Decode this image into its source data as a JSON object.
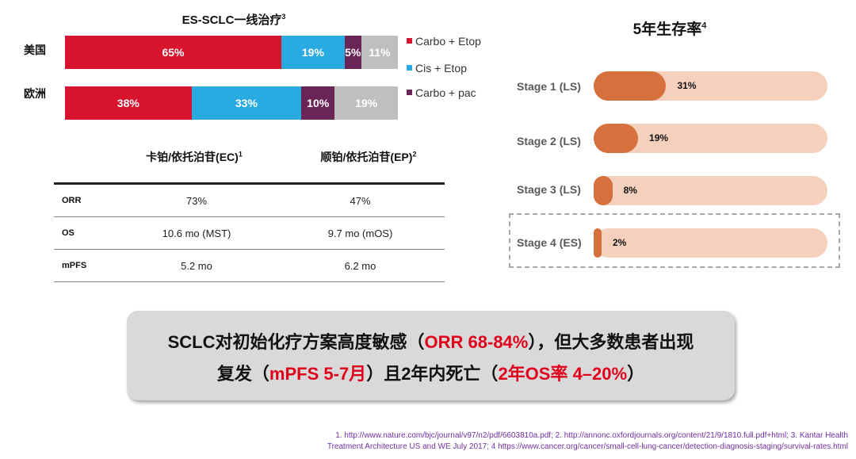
{
  "stacked_chart": {
    "title": "ES-SCLC一线治疗",
    "title_sup": "3",
    "rows": [
      {
        "label": "美国",
        "segments": [
          {
            "value": 65,
            "text": "65%",
            "color": "#d7132e"
          },
          {
            "value": 19,
            "text": "19%",
            "color": "#29abe2"
          },
          {
            "value": 5,
            "text": "5%",
            "color": "#6b2456"
          },
          {
            "value": 11,
            "text": "11%",
            "color": "#bfbfbf"
          }
        ]
      },
      {
        "label": "欧洲",
        "segments": [
          {
            "value": 38,
            "text": "38%",
            "color": "#d7132e"
          },
          {
            "value": 33,
            "text": "33%",
            "color": "#29abe2"
          },
          {
            "value": 10,
            "text": "10%",
            "color": "#6b2456"
          },
          {
            "value": 19,
            "text": "19%",
            "color": "#bfbfbf"
          }
        ]
      }
    ],
    "legend": [
      {
        "label": "Carbo + Etop",
        "color": "#d7132e"
      },
      {
        "label": "Cis + Etop",
        "color": "#29abe2"
      },
      {
        "label": "Carbo + pac",
        "color": "#6b2456"
      }
    ]
  },
  "table": {
    "col1_header": "卡铂/依托泊苷(EC)",
    "col1_sup": "1",
    "col2_header": "顺铂/依托泊苷(EP)",
    "col2_sup": "2",
    "rows": [
      {
        "label": "ORR",
        "ec": "73%",
        "ep": "47%"
      },
      {
        "label": "OS",
        "ec": "10.6 mo (MST)",
        "ep": "9.7 mo (mOS)"
      },
      {
        "label": "mPFS",
        "ec": "5.2 mo",
        "ep": "6.2 mo"
      }
    ]
  },
  "survival_chart": {
    "title": "5年生存率",
    "title_sup": "4",
    "stages": [
      {
        "label": "Stage 1 (LS)",
        "value": 31,
        "text": "31%"
      },
      {
        "label": "Stage 2 (LS)",
        "value": 19,
        "text": "19%"
      },
      {
        "label": "Stage 3 (LS)",
        "value": 8,
        "text": "8%"
      },
      {
        "label": "Stage 4 (ES)",
        "value": 2,
        "text": "2%"
      }
    ],
    "fill_color": "#d6703d",
    "track_color": "#f5d0bc"
  },
  "summary": {
    "line1_a": "SCLC对初始化疗方案高度敏感（",
    "line1_red": "ORR 68-84%",
    "line1_b": "），但大多数患者出现",
    "line2_a": "复发（",
    "line2_red1": "mPFS 5-7月",
    "line2_b": "）且2年内死亡（",
    "line2_red2": "2年OS率 4–20%",
    "line2_c": "）"
  },
  "footnote": {
    "line1": "1. http://www.nature.com/bjc/journal/v97/n2/pdf/6603810a.pdf; 2. http://annonc.oxfordjournals.org/content/21/9/1810.full.pdf+html; 3. Kantar Health",
    "line2": "Treatment Architecture US and WE July 2017; 4 https://www.cancer.org/cancer/small-cell-lung-cancer/detection-diagnosis-staging/survival-rates.html"
  },
  "chart_data": [
    {
      "type": "bar",
      "title": "ES-SCLC一线治疗",
      "categories": [
        "美国",
        "欧洲"
      ],
      "series": [
        {
          "name": "Carbo + Etop",
          "values": [
            65,
            38
          ]
        },
        {
          "name": "Cis + Etop",
          "values": [
            19,
            33
          ]
        },
        {
          "name": "Carbo + pac",
          "values": [
            5,
            10
          ]
        },
        {
          "values": [
            11,
            19
          ]
        }
      ],
      "stacked": true,
      "unit": "%"
    },
    {
      "type": "bar",
      "title": "5年生存率",
      "categories": [
        "Stage 1 (LS)",
        "Stage 2 (LS)",
        "Stage 3 (LS)",
        "Stage 4 (ES)"
      ],
      "values": [
        31,
        19,
        8,
        2
      ],
      "ylim": [
        0,
        100
      ],
      "unit": "%"
    }
  ]
}
